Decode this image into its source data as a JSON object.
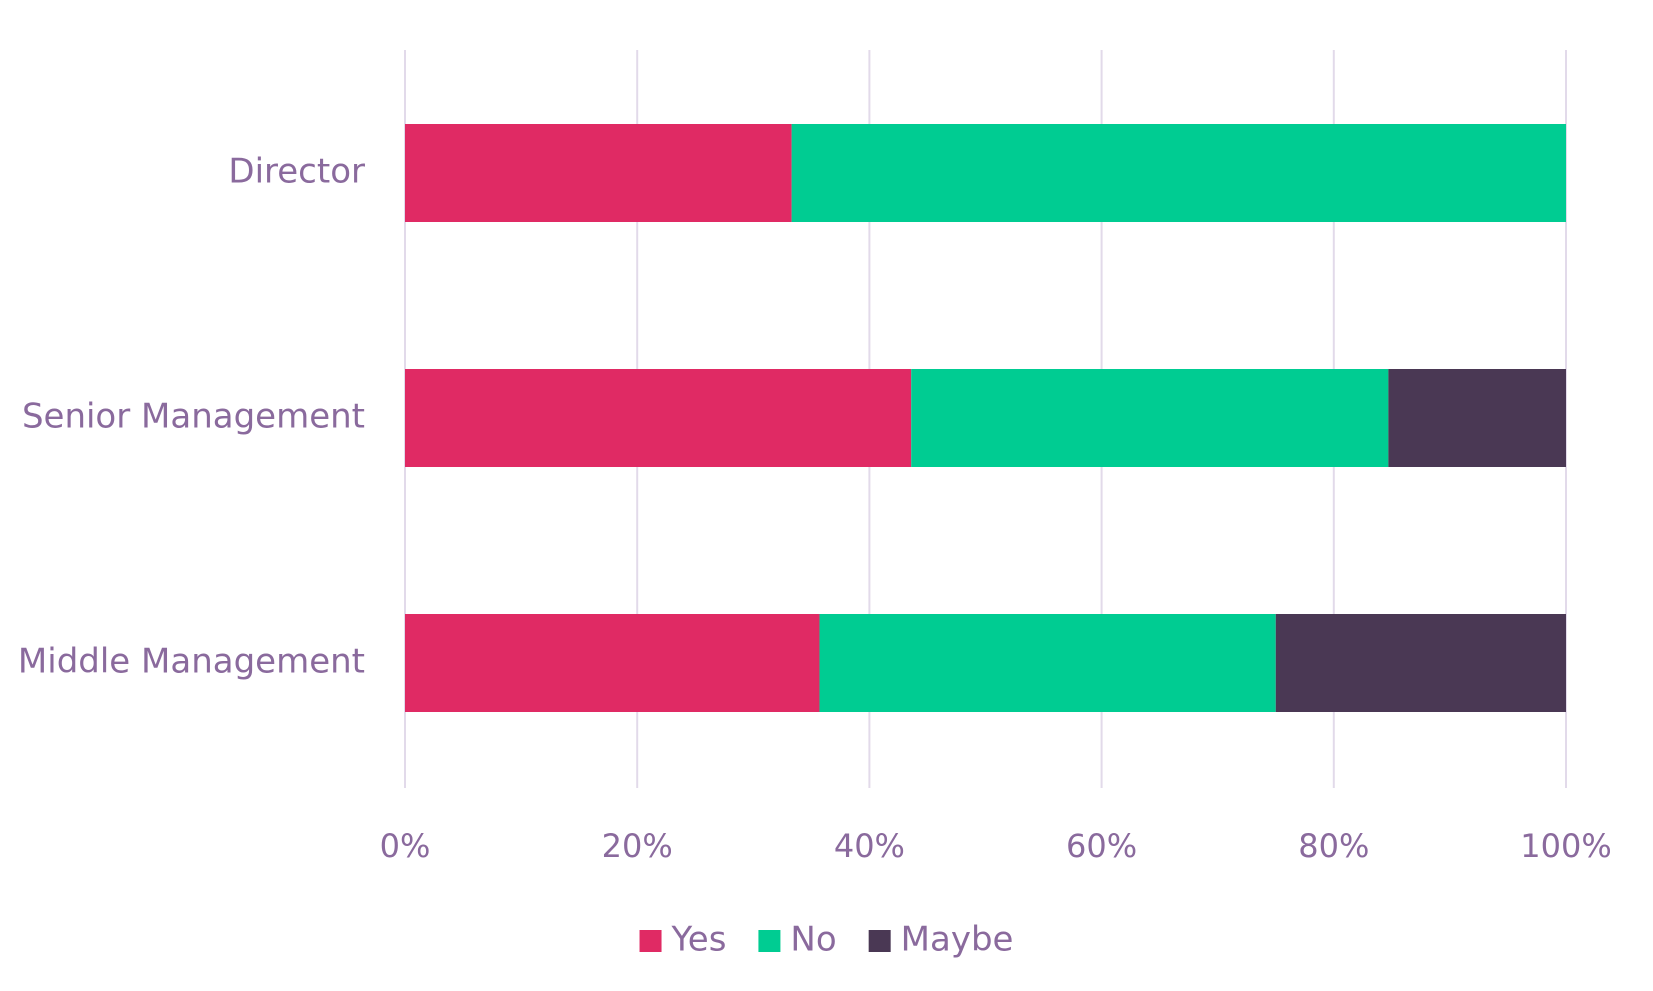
{
  "chart_data": {
    "type": "bar",
    "orientation": "horizontal",
    "stacked": "percent",
    "categories": [
      "Director",
      "Senior Management",
      "Middle Management"
    ],
    "series": [
      {
        "name": "Yes",
        "color": "#e02a64",
        "values": [
          33.3,
          43.6,
          35.7
        ]
      },
      {
        "name": "No",
        "color": "#00cc92",
        "values": [
          66.7,
          41.1,
          39.3
        ]
      },
      {
        "name": "Maybe",
        "color": "#4a3854",
        "values": [
          0,
          15.3,
          25.0
        ]
      }
    ],
    "xlim": [
      0,
      100
    ],
    "x_ticks": [
      0,
      20,
      40,
      60,
      80,
      100
    ],
    "x_tick_labels": [
      "0%",
      "20%",
      "40%",
      "60%",
      "80%",
      "100%"
    ],
    "title": "",
    "xlabel": "",
    "ylabel": "",
    "grid": "vertical",
    "legend_position": "bottom"
  }
}
